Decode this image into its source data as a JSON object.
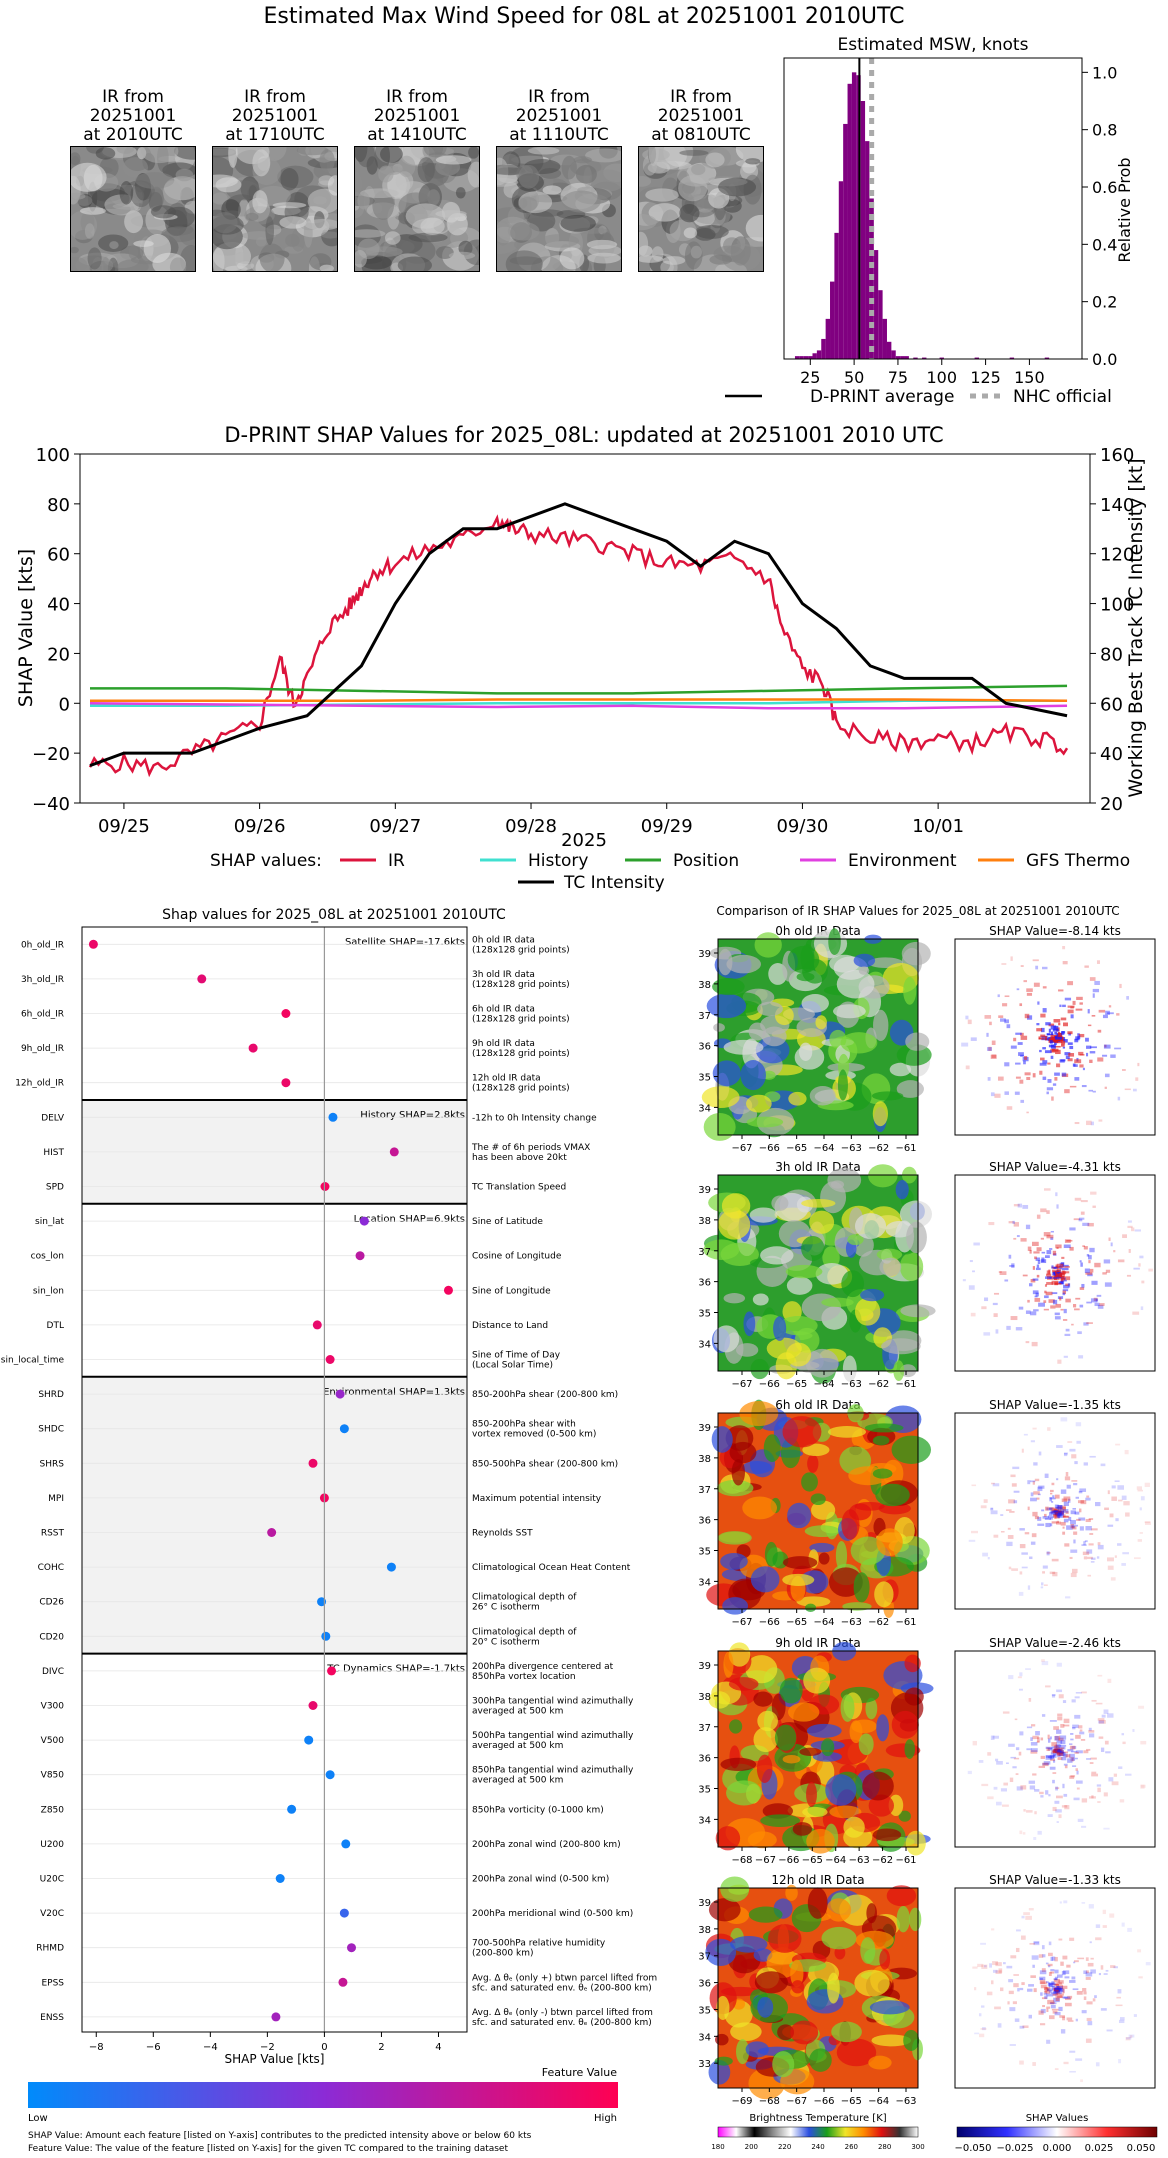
{
  "page": {
    "main_title": "Estimated Max Wind Speed for 08L at 20251001 2010UTC"
  },
  "ir_thumbs": [
    {
      "caption": "IR from\n20251001\nat 2010UTC"
    },
    {
      "caption": "IR from\n20251001\nat 1710UTC"
    },
    {
      "caption": "IR from\n20251001\nat 1410UTC"
    },
    {
      "caption": "IR from\n20251001\nat 1110UTC"
    },
    {
      "caption": "IR from\n20251001\nat 0810UTC"
    }
  ],
  "colors": {
    "ir": "#dc143c",
    "history": "#40e0d0",
    "position": "#2ca02c",
    "environment": "#e040e0",
    "gfs": "#ff7f0e",
    "tc": "#000000",
    "hist_bar": "#800080",
    "nhc": "#aaaaaa",
    "shap_low": "#008bfb",
    "shap_high": "#ff0052"
  },
  "chart_data": [
    {
      "type": "bar",
      "title": "Estimated MSW, knots",
      "ylabel": "Relative Prob",
      "xlim": [
        10,
        180
      ],
      "ylim": [
        0,
        1.05
      ],
      "xticks": [
        "25",
        "50",
        "75",
        "100",
        "125",
        "150"
      ],
      "yticks": [
        "0.0",
        "0.2",
        "0.4",
        "0.6",
        "0.8",
        "1.0"
      ],
      "bin_width": 2.5,
      "x": [
        17.5,
        20,
        22.5,
        25,
        27.5,
        30,
        32.5,
        35,
        37.5,
        40,
        42.5,
        45,
        47.5,
        50,
        52.5,
        55,
        57.5,
        60,
        62.5,
        65,
        67.5,
        70,
        72.5,
        75,
        77.5,
        80,
        85,
        90,
        100,
        120,
        140,
        160
      ],
      "values": [
        0.01,
        0.01,
        0.01,
        0.01,
        0.02,
        0.03,
        0.07,
        0.14,
        0.27,
        0.44,
        0.62,
        0.82,
        0.96,
        1.0,
        0.99,
        0.9,
        0.76,
        0.56,
        0.38,
        0.24,
        0.14,
        0.06,
        0.03,
        0.01,
        0.01,
        0.01,
        0.005,
        0.005,
        0.005,
        0.005,
        0.005,
        0.005
      ],
      "dprint_average": 53,
      "nhc_official": 60,
      "legend": [
        "D-PRINT average",
        "NHC official"
      ]
    },
    {
      "type": "line",
      "title": "D-PRINT SHAP Values for 2025_08L: updated at 20251001 2010 UTC",
      "xlabel": "2025",
      "ylabel": "SHAP Value [kts]",
      "y2label": "Working Best Track TC Intensity [kt]",
      "ylim": [
        -40,
        100
      ],
      "y2lim": [
        20,
        160
      ],
      "yticks": [
        "−40",
        "−20",
        "0",
        "20",
        "40",
        "60",
        "80",
        "100"
      ],
      "y2ticks": [
        "20",
        "40",
        "60",
        "80",
        "100",
        "120",
        "140",
        "160"
      ],
      "xticks": [
        "09/25",
        "09/26",
        "09/27",
        "09/28",
        "09/29",
        "09/30",
        "10/01"
      ],
      "legend_prefix": "SHAP values:",
      "series": [
        {
          "name": "IR",
          "x_days": [
            0,
            0.25,
            0.5,
            0.75,
            1,
            1.25,
            1.4,
            1.5,
            1.6,
            1.75,
            1.9,
            2,
            2.1,
            2.25,
            2.5,
            2.75,
            3,
            3.1,
            3.25,
            3.5,
            3.75,
            4,
            4.25,
            4.5,
            4.75,
            5,
            5.1,
            5.25,
            5.4,
            5.5,
            5.75,
            6,
            6.25,
            6.5,
            6.75,
            7,
            7.2
          ],
          "values": [
            -25,
            -24,
            -26,
            -20,
            -14,
            -8,
            18,
            0,
            10,
            30,
            38,
            46,
            53,
            56,
            62,
            66,
            74,
            70,
            68,
            66,
            64,
            60,
            56,
            55,
            58,
            50,
            30,
            14,
            8,
            -8,
            -14,
            -16,
            -14,
            -16,
            -12,
            -14,
            -18
          ]
        },
        {
          "name": "History",
          "x_days": [
            0,
            1,
            2,
            3,
            4,
            5,
            6,
            7.2
          ],
          "values": [
            -1,
            -1,
            -0.5,
            0,
            0,
            0,
            1,
            1
          ]
        },
        {
          "name": "Position",
          "x_days": [
            0,
            1,
            2,
            3,
            4,
            5,
            6,
            7.2
          ],
          "values": [
            6,
            6,
            5,
            4,
            4,
            5,
            6,
            7
          ]
        },
        {
          "name": "Environment",
          "x_days": [
            0,
            1,
            2,
            3,
            4,
            5,
            6,
            7.2
          ],
          "values": [
            0,
            -0.5,
            -1,
            -1.5,
            -1,
            -2,
            -2,
            -1
          ]
        },
        {
          "name": "GFS Thermo",
          "x_days": [
            0,
            1,
            2,
            3,
            4,
            5,
            6,
            7.2
          ],
          "values": [
            1,
            1,
            1,
            1.5,
            1.5,
            1.5,
            1.5,
            1
          ]
        },
        {
          "name": "TC Intensity",
          "axis": "right",
          "x_days": [
            0,
            0.25,
            0.75,
            1.25,
            1.6,
            2,
            2.25,
            2.5,
            2.75,
            3,
            3.5,
            4,
            4.25,
            4.5,
            4.75,
            5,
            5.25,
            5.5,
            5.75,
            6,
            6.5,
            6.75,
            7.2
          ],
          "values": [
            35,
            40,
            40,
            50,
            55,
            75,
            100,
            120,
            130,
            130,
            140,
            130,
            125,
            115,
            125,
            120,
            100,
            90,
            75,
            70,
            70,
            60,
            55
          ]
        }
      ]
    },
    {
      "type": "scatter",
      "title": "Shap values for 2025_08L at 20251001 2010UTC",
      "xlabel": "SHAP Value [kts]",
      "xlim": [
        -8.5,
        5
      ],
      "xticks": [
        "−8",
        "−6",
        "−4",
        "−2",
        "0",
        "2",
        "4"
      ],
      "groups": [
        {
          "summary": "Satellite SHAP=-17.6kts",
          "shaded": false,
          "features": [
            {
              "name": "0h_old_IR",
              "desc": "0h old IR data\n(128x128 grid points)",
              "value": -8.1,
              "level": 0.92
            },
            {
              "name": "3h_old_IR",
              "desc": "3h old IR data\n(128x128 grid points)",
              "value": -4.3,
              "level": 0.88
            },
            {
              "name": "6h_old_IR",
              "desc": "6h old IR data\n(128x128 grid points)",
              "value": -1.35,
              "level": 0.95
            },
            {
              "name": "9h_old_IR",
              "desc": "9h old IR data\n(128x128 grid points)",
              "value": -2.5,
              "level": 0.9
            },
            {
              "name": "12h_old_IR",
              "desc": "12h old IR data\n(128x128 grid points)",
              "value": -1.35,
              "level": 0.92
            }
          ]
        },
        {
          "summary": "History SHAP=2.8kts",
          "shaded": true,
          "features": [
            {
              "name": "DELV",
              "desc": "-12h to 0h Intensity change",
              "value": 0.3,
              "level": 0.05
            },
            {
              "name": "HIST",
              "desc": "The # of 6h periods VMAX\nhas been above 20kt",
              "value": 2.45,
              "level": 0.75
            },
            {
              "name": "SPD",
              "desc": "TC Translation Speed",
              "value": 0.02,
              "level": 0.95
            }
          ]
        },
        {
          "summary": "Location SHAP=6.9kts",
          "shaded": false,
          "features": [
            {
              "name": "sin_lat",
              "desc": "Sine of Latitude",
              "value": 1.4,
              "level": 0.5
            },
            {
              "name": "cos_lon",
              "desc": "Cosine of Longitude",
              "value": 1.25,
              "level": 0.7
            },
            {
              "name": "sin_lon",
              "desc": "Sine of Longitude",
              "value": 4.35,
              "level": 0.95
            },
            {
              "name": "DTL",
              "desc": "Distance to Land",
              "value": -0.25,
              "level": 0.9
            },
            {
              "name": "sin_local_time",
              "desc": "Sine of Time of Day\n(Local Solar Time)",
              "value": 0.2,
              "level": 0.92
            }
          ]
        },
        {
          "summary": "Environmental SHAP=1.3kts",
          "shaded": true,
          "features": [
            {
              "name": "SHRD",
              "desc": "850-200hPa shear (200-800 km)",
              "value": 0.55,
              "level": 0.55
            },
            {
              "name": "SHDC",
              "desc": "850-200hPa shear with\nvortex removed (0-500 km)",
              "value": 0.7,
              "level": 0.05
            },
            {
              "name": "SHRS",
              "desc": "850-500hPa shear (200-800 km)",
              "value": -0.4,
              "level": 0.92
            },
            {
              "name": "MPI",
              "desc": "Maximum potential intensity",
              "value": 0.0,
              "level": 0.95
            },
            {
              "name": "RSST",
              "desc": "Reynolds SST",
              "value": -1.85,
              "level": 0.7
            },
            {
              "name": "COHC",
              "desc": "Climatological Ocean Heat Content",
              "value": 2.35,
              "level": 0.05
            },
            {
              "name": "CD26",
              "desc": "Climatological depth of\n26° C isotherm",
              "value": -0.1,
              "level": 0.05
            },
            {
              "name": "CD20",
              "desc": "Climatological depth of\n20° C isotherm",
              "value": 0.05,
              "level": 0.05
            }
          ]
        },
        {
          "summary": "TC Dynamics SHAP=-1.7kts",
          "shaded": false,
          "features": [
            {
              "name": "DIVC",
              "desc": "200hPa divergence centered at\n850hPa vortex location",
              "value": 0.25,
              "level": 0.95
            },
            {
              "name": "V300",
              "desc": "300hPa tangential wind azimuthally\naveraged at 500 km",
              "value": -0.4,
              "level": 0.9
            },
            {
              "name": "V500",
              "desc": "500hPa tangential wind azimuthally\naveraged at 500 km",
              "value": -0.55,
              "level": 0.05
            },
            {
              "name": "V850",
              "desc": "850hPa tangential wind azimuthally\naveraged at 500 km",
              "value": 0.2,
              "level": 0.05
            },
            {
              "name": "Z850",
              "desc": "850hPa vorticity (0-1000 km)",
              "value": -1.15,
              "level": 0.05
            },
            {
              "name": "U200",
              "desc": "200hPa zonal wind (200-800 km)",
              "value": 0.75,
              "level": 0.05
            },
            {
              "name": "U20C",
              "desc": "200hPa zonal wind (0-500 km)",
              "value": -1.55,
              "level": 0.05
            },
            {
              "name": "V20C",
              "desc": "200hPa meridional wind (0-500 km)",
              "value": 0.7,
              "level": 0.2
            },
            {
              "name": "RHMD",
              "desc": "700-500hPa relative humidity\n(200-800 km)",
              "value": 0.95,
              "level": 0.6
            },
            {
              "name": "EPSS",
              "desc": "Avg. Δ θₑ (only +) btwn parcel lifted from\nsfc. and saturated env. θₑ (200-800 km)",
              "value": 0.65,
              "level": 0.75
            },
            {
              "name": "ENSS",
              "desc": "Avg. Δ θₑ (only -) btwn parcel lifted from\nsfc. and saturated env. θₑ (200-800 km)",
              "value": -1.7,
              "level": 0.6
            }
          ]
        }
      ],
      "colorbar": {
        "title": "Feature Value",
        "low": "Low",
        "high": "High"
      }
    }
  ],
  "ir_compare": {
    "title": "Comparison of IR SHAP Values for 2025_08L at 20251001 2010UTC",
    "rows": [
      {
        "ir_title": "0h old IR Data",
        "shap_title": "SHAP Value=-8.14 kts",
        "yticks": [
          "39",
          "38",
          "37",
          "36",
          "35",
          "34"
        ],
        "xticks": [
          "−67",
          "−66",
          "−65",
          "−64",
          "−63",
          "−62",
          "−61"
        ]
      },
      {
        "ir_title": "3h old IR Data",
        "shap_title": "SHAP Value=-4.31 kts",
        "yticks": [
          "39",
          "38",
          "37",
          "36",
          "35",
          "34"
        ],
        "xticks": [
          "−67",
          "−66",
          "−65",
          "−64",
          "−63",
          "−62",
          "−61"
        ]
      },
      {
        "ir_title": "6h old IR Data",
        "shap_title": "SHAP Value=-1.35 kts",
        "yticks": [
          "39",
          "38",
          "37",
          "36",
          "35",
          "34"
        ],
        "xticks": [
          "−67",
          "−66",
          "−65",
          "−64",
          "−63",
          "−62",
          "−61"
        ]
      },
      {
        "ir_title": "9h old IR Data",
        "shap_title": "SHAP Value=-2.46 kts",
        "yticks": [
          "39",
          "38",
          "37",
          "36",
          "35",
          "34"
        ],
        "xticks": [
          "−68",
          "−67",
          "−66",
          "−65",
          "−64",
          "−63",
          "−62",
          "−61"
        ]
      },
      {
        "ir_title": "12h old IR Data",
        "shap_title": "SHAP Value=-1.33 kts",
        "yticks": [
          "39",
          "38",
          "37",
          "36",
          "35",
          "34",
          "33"
        ],
        "xticks": [
          "−69",
          "−68",
          "−67",
          "−66",
          "−65",
          "−64",
          "−63"
        ]
      }
    ],
    "bt_colorbar": {
      "label": "Brightness Temperature [K]",
      "ticks": [
        "180",
        "200",
        "220",
        "240",
        "260",
        "280",
        "300"
      ]
    },
    "shap_colorbar": {
      "label": "SHAP Values",
      "ticks": [
        "−0.050",
        "−0.025",
        "0.000",
        "0.025",
        "0.050"
      ]
    }
  },
  "footnotes": [
    "SHAP Value: Amount each feature [listed on Y-axis] contributes to the predicted intensity above or below 60 kts",
    "Feature Value: The value of the feature [listed on Y-axis] for the given TC compared to the training dataset"
  ]
}
